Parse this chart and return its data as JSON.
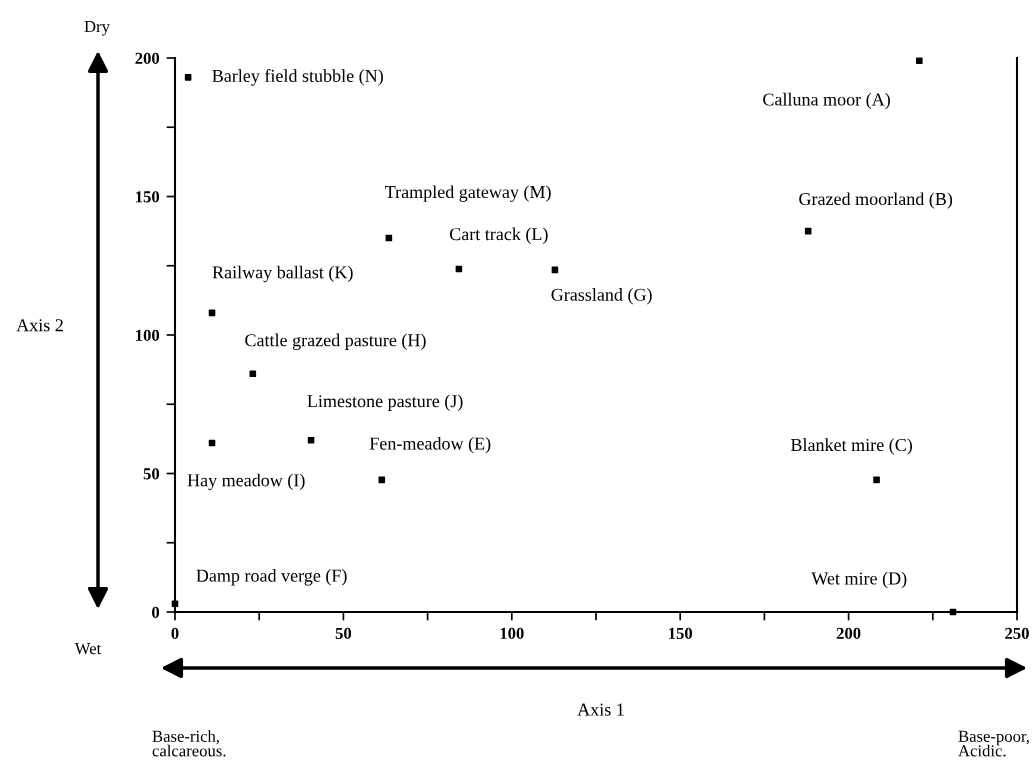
{
  "chart_data": {
    "type": "scatter",
    "xlabel": "Axis 1",
    "ylabel": "Axis 2",
    "x": [
      221,
      188,
      208.3,
      231,
      61.4,
      0,
      112.8,
      23.1,
      11,
      40.4,
      11,
      84.3,
      63.5,
      3.9
    ],
    "series": [
      {
        "color": "#000000",
        "values": [
          199,
          137.5,
          47.7,
          0,
          47.7,
          3,
          123.5,
          86,
          61,
          62,
          108,
          123.8,
          135,
          193
        ]
      }
    ],
    "marker": "square",
    "xlim": [
      0,
      250
    ],
    "ylim": [
      0,
      200
    ],
    "xticks": [
      0,
      {
        "value": 25,
        "label": null
      },
      50,
      {
        "value": 75,
        "label": null
      },
      100,
      {
        "value": 125,
        "label": null
      },
      150,
      {
        "value": 175,
        "label": null
      },
      200,
      {
        "value": 225,
        "label": null
      },
      250
    ],
    "yticks": [
      0,
      {
        "value": 25,
        "label": null
      },
      50,
      {
        "value": 75,
        "label": null
      },
      100,
      {
        "value": 125,
        "label": null
      },
      150,
      {
        "value": 175,
        "label": null
      },
      200
    ],
    "grid": false,
    "legend": false,
    "annotations": [
      {
        "text": "Calluna moor (A)",
        "x": 221,
        "y": 199
      },
      {
        "text": "Grazed moorland (B)",
        "x": 188,
        "y": 137.5
      },
      {
        "text": "Blanket mire (C)",
        "x": 208.3,
        "y": 47.7
      },
      {
        "text": "Wet mire (D)",
        "x": 231,
        "y": 0
      },
      {
        "text": "Fen-meadow (E)",
        "x": 61.4,
        "y": 47.7
      },
      {
        "text": "Damp road verge (F)",
        "x": 0,
        "y": 3
      },
      {
        "text": "Grassland (G)",
        "x": 112.8,
        "y": 123.5
      },
      {
        "text": "Cattle grazed pasture (H)",
        "x": 23.1,
        "y": 86
      },
      {
        "text": "Hay meadow (I)",
        "x": 11,
        "y": 61
      },
      {
        "text": "Limestone pasture (J)",
        "x": 40.4,
        "y": 62
      },
      {
        "text": "Railway ballast (K)",
        "x": 11,
        "y": 108
      },
      {
        "text": "Cart track (L)",
        "x": 84.3,
        "y": 123.8
      },
      {
        "text": "Trampled gateway (M)",
        "x": 63.5,
        "y": 135
      },
      {
        "text": "Barley field stubble (N)",
        "x": 3.9,
        "y": 193
      },
      "Dry",
      "Wet",
      "Base-rich,\ncalcareous.",
      "Base-poor,\nAcidic."
    ]
  }
}
